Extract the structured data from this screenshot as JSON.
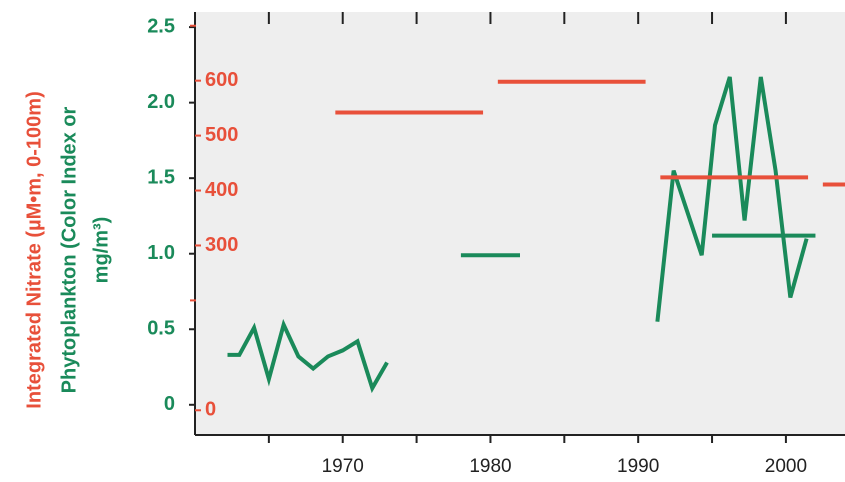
{
  "chart_data": {
    "type": "line",
    "ylabel_nitrate": "Integrated Nitrate (µM•m, 0-100m)",
    "ylabel_phyto": [
      "Phytoplankton (Color Index or",
      "mg/m³)"
    ],
    "xlim": [
      1960,
      2004
    ],
    "xticks": [
      1970,
      1980,
      1990,
      2000
    ],
    "minor_xticks": [
      1965,
      1975,
      1985,
      1995
    ],
    "ylim": [
      -0.2,
      2.6
    ],
    "yticks": [
      0,
      0.5,
      {
        "value": 1,
        "label": "1.0"
      },
      1.5,
      {
        "value": 2,
        "label": "2.0"
      },
      2.5
    ],
    "y2lim": [
      -45,
      725
    ],
    "y2ticks": [
      0,
      300,
      400,
      500,
      600
    ],
    "minor_y2ticks": [
      200,
      700
    ],
    "y_color": "#1a8a5a",
    "y2_color": "#e8503a",
    "series": [
      {
        "axis": "y",
        "color": "#1a8a5a",
        "x": [
          1962.2,
          1963,
          1964,
          1965,
          1966,
          1967,
          1968,
          1969,
          1970,
          1971,
          1972,
          1973
        ],
        "values": [
          0.33,
          0.33,
          0.51,
          0.17,
          0.53,
          0.32,
          0.24,
          0.32,
          0.36,
          0.42,
          0.11,
          0.28
        ]
      },
      {
        "axis": "y",
        "color": "#1a8a5a",
        "x": [
          1978,
          1982
        ],
        "values": [
          0.99,
          0.99
        ]
      },
      {
        "axis": "y",
        "color": "#1a8a5a",
        "x": [
          1991.3,
          1992.4,
          1994.3,
          1995.2,
          1996.2,
          1997.2,
          1998.3,
          1999.3,
          2000.3,
          2001.4
        ],
        "values": [
          0.55,
          1.55,
          0.99,
          1.85,
          2.17,
          1.22,
          2.17,
          1.55,
          0.71,
          1.1
        ]
      },
      {
        "axis": "y",
        "color": "#1a8a5a",
        "x": [
          1995,
          2002
        ],
        "values": [
          1.12,
          1.12
        ]
      },
      {
        "axis": "y2",
        "color": "#e8503a",
        "x": [
          1969.5,
          1979.5
        ],
        "values": [
          542,
          542
        ]
      },
      {
        "axis": "y2",
        "color": "#e8503a",
        "x": [
          1980.5,
          1990.5
        ],
        "values": [
          598,
          598
        ]
      },
      {
        "axis": "y2",
        "color": "#e8503a",
        "x": [
          1991.5,
          2001.5
        ],
        "values": [
          424,
          424
        ]
      },
      {
        "axis": "y2",
        "color": "#e8503a",
        "x": [
          2002.5,
          2004
        ],
        "values": [
          411,
          411
        ]
      }
    ]
  }
}
